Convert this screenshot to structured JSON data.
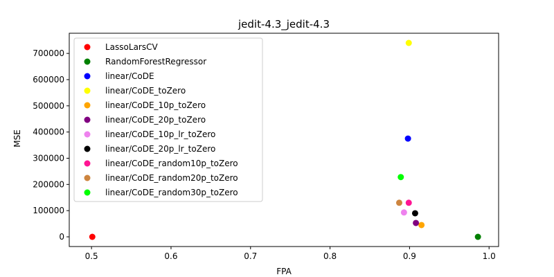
{
  "chart_data": {
    "type": "scatter",
    "title": "jedit-4.3_jedit-4.3",
    "xlabel": "FPA",
    "ylabel": "MSE",
    "xlim": [
      0.472,
      1.012
    ],
    "ylim": [
      -37000,
      777000
    ],
    "x_ticks": [
      "0.5",
      "0.6",
      "0.7",
      "0.8",
      "0.9",
      "1.0"
    ],
    "y_ticks": [
      "0",
      "100000",
      "200000",
      "300000",
      "400000",
      "500000",
      "600000",
      "700000"
    ],
    "grid": false,
    "legend_position": "upper-left",
    "series": [
      {
        "name": "LassoLarsCV",
        "color": "#ff0000",
        "points": [
          [
            0.501,
            0
          ]
        ]
      },
      {
        "name": "RandomForestRegressor",
        "color": "#008000",
        "points": [
          [
            0.986,
            0
          ]
        ]
      },
      {
        "name": "linear/CoDE",
        "color": "#0000ff",
        "points": [
          [
            0.898,
            375000
          ]
        ]
      },
      {
        "name": "linear/CoDE_toZero",
        "color": "#ffff00",
        "points": [
          [
            0.899,
            740000
          ]
        ]
      },
      {
        "name": "linear/CoDE_10p_toZero",
        "color": "#ffa500",
        "points": [
          [
            0.915,
            45000
          ]
        ]
      },
      {
        "name": "linear/CoDE_20p_toZero",
        "color": "#800080",
        "points": [
          [
            0.908,
            53000
          ]
        ]
      },
      {
        "name": "linear/CoDE_10p_lr_toZero",
        "color": "#ee82ee",
        "points": [
          [
            0.893,
            93000
          ]
        ]
      },
      {
        "name": "linear/CoDE_20p_lr_toZero",
        "color": "#000000",
        "points": [
          [
            0.907,
            90000
          ]
        ]
      },
      {
        "name": "linear/CoDE_random10p_toZero",
        "color": "#ff1493",
        "points": [
          [
            0.899,
            130000
          ]
        ]
      },
      {
        "name": "linear/CoDE_random20p_toZero",
        "color": "#cd853f",
        "points": [
          [
            0.887,
            130000
          ]
        ]
      },
      {
        "name": "linear/CoDE_random30p_toZero",
        "color": "#00ff00",
        "points": [
          [
            0.889,
            228000
          ]
        ]
      }
    ]
  }
}
